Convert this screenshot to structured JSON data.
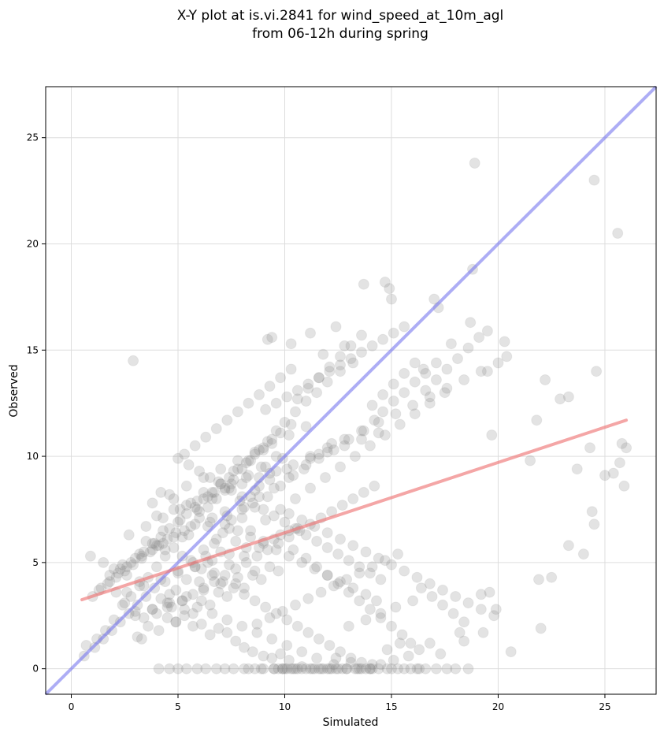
{
  "chart_data": {
    "type": "scatter",
    "title_lines": [
      "X-Y plot at is.vi.2841 for wind_speed_at_10m_agl",
      "from 06-12h during spring"
    ],
    "xlabel": "Simulated",
    "ylabel": "Observed",
    "xlim": [
      -1.2,
      27.4
    ],
    "ylim": [
      -1.2,
      27.4
    ],
    "xticks": [
      0,
      5,
      10,
      15,
      20,
      25
    ],
    "yticks": [
      0,
      5,
      10,
      15,
      20,
      25
    ],
    "grid": true,
    "colors": {
      "points": "#808080",
      "identity_line": "#7777ee",
      "fit_line": "#ee7777",
      "grid": "#dddddd",
      "axes": "#000000"
    },
    "identity_line": {
      "x": [
        -1.2,
        27.4
      ],
      "y": [
        -1.2,
        27.4
      ]
    },
    "fit_line": {
      "x": [
        0.5,
        26.0
      ],
      "y": [
        3.25,
        11.7
      ]
    },
    "points": {
      "x": [
        2.9,
        18.9,
        24.5,
        25.6,
        18.8,
        13.7,
        14.7,
        14.9,
        15.0,
        17.0,
        17.2,
        18.7,
        19.5,
        20.3,
        20.4,
        9.2,
        9.4,
        10.3,
        11.2,
        12.4,
        12.8,
        11.8,
        16.5,
        17.8,
        19.5,
        19.7,
        21.8,
        22.2,
        22.9,
        23.3,
        24.6,
        25.8,
        26.0,
        21.5,
        24.3,
        25.0,
        25.4,
        25.7,
        25.9,
        23.7,
        24.0,
        24.4,
        24.5,
        23.3,
        22.5,
        21.9,
        22.0,
        19.6,
        19.9,
        20.6,
        19.2,
        19.3,
        18.4,
        18.2,
        17.3,
        16.8,
        16.3,
        15.4,
        15.8,
        14.5,
        14.8,
        15.1,
        14.0,
        13.6,
        13.1,
        12.9,
        12.4,
        12.1,
        11.7,
        11.2,
        10.8,
        10.5,
        10.1,
        9.7,
        8.3,
        8.9,
        9.5,
        9.9,
        10.3,
        10.8,
        11.4,
        12.0,
        12.5,
        13.3,
        13.8,
        14.4,
        15.0,
        15.6,
        16.2,
        16.6,
        17.1,
        17.6,
        18.0,
        18.6,
        16.3,
        15.9,
        15.3,
        14.8,
        14.1,
        13.4,
        12.7,
        12.2,
        11.6,
        11.0,
        10.4,
        9.9,
        4.1,
        4.6,
        5.0,
        5.4,
        5.9,
        6.3,
        6.8,
        7.2,
        7.6,
        8.1,
        8.6,
        9.0,
        9.5,
        10.0,
        10.6,
        11.3,
        11.8,
        12.4,
        12.9,
        13.5,
        14.0,
        2.1,
        2.5,
        3.0,
        3.4,
        3.8,
        4.2,
        4.5,
        4.9,
        5.3,
        5.7,
        6.1,
        6.5,
        6.9,
        7.3,
        7.7,
        8.1,
        8.5,
        9.0,
        9.4,
        9.8,
        10.2,
        0.7,
        1.2,
        1.6,
        2.0,
        2.4,
        2.8,
        3.2,
        3.6,
        4.0,
        4.4,
        4.8,
        5.2,
        5.6,
        6.0,
        6.4,
        6.8,
        7.2,
        7.6,
        8.0,
        8.4,
        8.8,
        9.2,
        9.6,
        10.0,
        10.5,
        11.0,
        11.5,
        12.0,
        12.6,
        13.2,
        1.0,
        1.4,
        1.8,
        2.2,
        2.6,
        3.0,
        3.4,
        3.8,
        4.2,
        4.6,
        5.0,
        5.4,
        5.8,
        6.2,
        6.6,
        7.0,
        7.4,
        7.8,
        8.2,
        8.6,
        9.0,
        9.4,
        9.8,
        10.3,
        3.1,
        3.6,
        4.0,
        4.5,
        4.9,
        5.4,
        5.8,
        6.3,
        6.7,
        7.1,
        7.5,
        8.0,
        8.4,
        8.8,
        9.3,
        3.5,
        4.3,
        5.1,
        5.9,
        6.6,
        7.4,
        8.2,
        8.9,
        9.6,
        6.2,
        6.9,
        7.6,
        8.3,
        9.0,
        6.5,
        7.2,
        7.9,
        8.6,
        9.3,
        10.1,
        4.4,
        5.0,
        5.6,
        6.2,
        6.8,
        7.4,
        8.0,
        8.6,
        9.2,
        9.8,
        10.4,
        11.0,
        11.6,
        12.2,
        10.6,
        11.1,
        11.6,
        12.1,
        12.6,
        13.1,
        13.6,
        14.1,
        14.6,
        15.1,
        15.6,
        16.1,
        16.6,
        17.1,
        17.6,
        18.1,
        18.6,
        19.1,
        11.2,
        12.0,
        12.8,
        13.6,
        14.4,
        15.2,
        16.0,
        16.8,
        17.6,
        18.4,
        19.2,
        20.0,
        10.4,
        11.0,
        11.5,
        12.0,
        12.5,
        13.0,
        13.5,
        14.0,
        14.5,
        15.0,
        15.5,
        15.9,
        16.4,
        16.9,
        17.4,
        17.9,
        18.4,
        0.6,
        1.1,
        1.5,
        1.9,
        2.3,
        2.7,
        3.1,
        3.5,
        1.3,
        1.7,
        2.1,
        2.5,
        2.9,
        3.3,
        3.7,
        4.1,
        4.5,
        4.9,
        1.8,
        2.3,
        2.8,
        3.3,
        3.8,
        4.3,
        4.8,
        5.3,
        5.8,
        2.6,
        3.4,
        4.2,
        5.0,
        5.8,
        6.6,
        7.4,
        8.2,
        9.0,
        9.8,
        10.6,
        3.0,
        3.8,
        4.6,
        5.4,
        6.2,
        7.0,
        7.8,
        8.6,
        4.0,
        4.8,
        5.6,
        6.4,
        7.2,
        8.0,
        8.8,
        9.6,
        10.4,
        11.2,
        12.0,
        12.8,
        13.6,
        14.4,
        4.7,
        5.2,
        5.7,
        6.2,
        6.7,
        7.2,
        7.7,
        8.2,
        8.7,
        9.2,
        9.7,
        10.2,
        10.7,
        11.2,
        11.7,
        12.2,
        12.7,
        13.2,
        13.7,
        14.2,
        9.1,
        9.6,
        10.1,
        10.6,
        11.1,
        11.6,
        12.1,
        12.6,
        13.1,
        13.6,
        14.1,
        14.6,
        15.1,
        15.6,
        8.7,
        9.3,
        9.9,
        10.5,
        11.1,
        11.7,
        12.3,
        12.9,
        13.5,
        14.1,
        14.7,
        15.3,
        10.2,
        10.8,
        11.4,
        12.0,
        12.6,
        13.2,
        13.8,
        14.4,
        15.0,
        15.6,
        16.2,
        16.8,
        17.4,
        18.0,
        18.6,
        19.2,
        19.8,
        5.0,
        5.5,
        6.0,
        6.5,
        7.0,
        7.5,
        8.0,
        8.5,
        9.0,
        9.5,
        10.0,
        10.5,
        11.0,
        11.5,
        12.0,
        12.5,
        13.0,
        13.5,
        14.0,
        14.5,
        4.2,
        4.8,
        5.4,
        6.0,
        6.6,
        7.2,
        7.8,
        8.4,
        9.0,
        9.6,
        10.2,
        10.8,
        11.4,
        12.0,
        12.6,
        13.2,
        13.8,
        14.3,
        3.9,
        4.4,
        5.2,
        5.7,
        6.1,
        6.6,
        7.1,
        7.6,
        8.1,
        8.6,
        9.1,
        9.6,
        10.1,
        10.6,
        11.1,
        11.6,
        12.1,
        12.6,
        13.1,
        13.6,
        14.1,
        2.4,
        3.2,
        4.0,
        5.5,
        6.4,
        7.3,
        8.1,
        8.8,
        9.5,
        10.2,
        10.9,
        11.6,
        12.3,
        13.0,
        13.7,
        14.2,
        14.6,
        15.1,
        15.6,
        16.1,
        16.6,
        17.1,
        5.3,
        5.8,
        6.3,
        6.8,
        7.3,
        7.8,
        8.3,
        8.8,
        9.3,
        9.8,
        10.3,
        6.0,
        6.7,
        7.4,
        8.1,
        8.8,
        9.5,
        10.2,
        4.5,
        5.3,
        6.1,
        6.9,
        7.7,
        8.5,
        9.3,
        3.3,
        4.1,
        4.9,
        5.7,
        6.5,
        7.3,
        8.1,
        8.9,
        9.7,
        3.8,
        4.6,
        5.4,
        6.2,
        7.0,
        7.8,
        8.6,
        9.4,
        10.2,
        11.0,
        2.7,
        3.5,
        4.3,
        5.1,
        5.9,
        6.7,
        7.5,
        8.3,
        9.1,
        9.9,
        0.9,
        1.5,
        2.0,
        2.6,
        3.2,
        3.9,
        4.6,
        5.2,
        5.9,
        6.6,
        7.3,
        8.0,
        8.7,
        9.4,
        10.1,
        10.8,
        11.5,
        12.3,
        13.0,
        13.8,
        14.5,
        15.2,
        16.0,
        6.4,
        7.0,
        7.7,
        8.4,
        9.1,
        9.8,
        10.5,
        11.2,
        11.9,
        12.6,
        13.3,
        14.0,
        14.7,
        15.4,
        16.1,
        16.8,
        17.5
      ],
      "y": [
        14.5,
        23.8,
        23.0,
        20.5,
        18.8,
        18.1,
        18.2,
        17.9,
        17.4,
        17.4,
        17.0,
        16.3,
        15.9,
        15.4,
        14.7,
        15.5,
        15.6,
        15.3,
        15.8,
        16.1,
        15.2,
        14.8,
        14.1,
        15.3,
        14.0,
        11.0,
        11.7,
        13.6,
        12.7,
        12.8,
        14.0,
        10.6,
        10.4,
        9.8,
        10.4,
        9.1,
        9.2,
        9.7,
        8.6,
        9.4,
        5.4,
        7.4,
        6.8,
        5.8,
        4.3,
        4.2,
        1.9,
        3.6,
        2.8,
        0.8,
        3.5,
        1.7,
        1.3,
        1.7,
        0.7,
        1.2,
        0.9,
        1.2,
        0.6,
        0.2,
        0.9,
        0.4,
        0.0,
        0.0,
        0.3,
        0.0,
        0.5,
        0.0,
        0.0,
        0.0,
        0.1,
        0.0,
        0.0,
        0.0,
        0.0,
        0.0,
        0.0,
        0.0,
        0.0,
        0.0,
        0.0,
        0.0,
        0.0,
        0.0,
        0.0,
        0.0,
        0.0,
        0.0,
        0.0,
        0.0,
        0.0,
        0.0,
        0.0,
        0.0,
        0.0,
        0.0,
        0.0,
        0.0,
        0.0,
        0.0,
        0.0,
        0.0,
        0.0,
        0.0,
        0.0,
        0.0,
        0.0,
        0.0,
        0.0,
        0.0,
        0.0,
        0.0,
        0.0,
        0.0,
        0.0,
        0.0,
        0.0,
        0.0,
        0.0,
        0.0,
        0.0,
        0.0,
        0.0,
        0.0,
        0.0,
        0.0,
        0.0,
        3.6,
        3.1,
        2.7,
        2.4,
        2.8,
        3.3,
        2.9,
        2.2,
        2.5,
        2.0,
        2.1,
        1.6,
        1.9,
        1.7,
        1.3,
        1.0,
        0.8,
        0.6,
        0.5,
        0.7,
        0.4,
        1.1,
        1.4,
        1.8,
        2.3,
        3.0,
        3.4,
        3.9,
        4.3,
        4.8,
        5.3,
        5.7,
        6.2,
        6.7,
        7.1,
        7.6,
        8.0,
        8.5,
        8.9,
        9.4,
        9.8,
        10.3,
        10.7,
        11.2,
        11.6,
        12.1,
        12.6,
        13.0,
        13.5,
        14.0,
        14.4,
        3.4,
        3.8,
        4.1,
        4.5,
        4.8,
        5.2,
        5.5,
        5.9,
        6.2,
        6.6,
        6.9,
        7.3,
        7.6,
        8.0,
        8.3,
        8.7,
        9.0,
        9.4,
        9.7,
        10.1,
        10.4,
        10.8,
        11.1,
        11.5,
        1.5,
        2.0,
        2.6,
        3.1,
        3.7,
        4.2,
        4.8,
        5.3,
        5.9,
        6.4,
        7.0,
        7.5,
        8.1,
        8.6,
        9.2,
        6.0,
        6.5,
        7.0,
        7.5,
        8.0,
        8.5,
        9.0,
        9.5,
        10.0,
        8.3,
        8.8,
        9.3,
        9.8,
        10.3,
        6.9,
        7.4,
        7.9,
        8.4,
        8.9,
        9.4,
        4.1,
        4.6,
        5.1,
        5.6,
        6.1,
        6.6,
        7.1,
        7.6,
        8.1,
        8.6,
        9.1,
        9.6,
        10.1,
        10.6,
        12.7,
        13.2,
        13.7,
        14.2,
        14.7,
        15.2,
        15.7,
        12.4,
        12.9,
        13.4,
        13.9,
        14.4,
        13.1,
        13.6,
        14.1,
        14.6,
        15.1,
        15.6,
        10.0,
        10.4,
        10.8,
        11.2,
        11.6,
        12.0,
        12.4,
        12.8,
        13.2,
        13.6,
        14.0,
        14.4,
        5.6,
        5.2,
        4.8,
        4.4,
        4.0,
        3.6,
        3.2,
        2.8,
        2.4,
        2.0,
        1.6,
        1.2,
        3.8,
        3.4,
        3.0,
        2.6,
        2.2,
        0.6,
        1.0,
        1.4,
        1.8,
        2.2,
        2.6,
        3.0,
        3.4,
        3.7,
        4.0,
        4.3,
        4.6,
        4.9,
        5.2,
        5.5,
        5.8,
        6.1,
        6.4,
        4.4,
        4.7,
        5.0,
        5.3,
        5.6,
        5.9,
        6.2,
        6.5,
        6.8,
        3.6,
        3.9,
        4.2,
        4.5,
        4.8,
        5.1,
        5.4,
        5.7,
        6.0,
        6.3,
        6.6,
        2.5,
        2.8,
        3.1,
        3.4,
        3.7,
        4.0,
        4.3,
        4.6,
        7.2,
        7.5,
        7.8,
        8.1,
        8.4,
        8.7,
        9.0,
        9.3,
        9.6,
        9.9,
        10.2,
        10.5,
        10.8,
        11.1,
        2.9,
        3.2,
        3.5,
        3.8,
        4.1,
        4.4,
        4.7,
        5.0,
        5.3,
        5.6,
        5.9,
        6.2,
        6.5,
        6.8,
        7.1,
        7.4,
        7.7,
        8.0,
        8.3,
        8.6,
        12.2,
        12.5,
        12.8,
        13.1,
        13.4,
        13.7,
        14.0,
        14.3,
        14.6,
        14.9,
        15.2,
        15.5,
        15.8,
        16.1,
        2.1,
        2.4,
        2.7,
        3.0,
        3.3,
        3.6,
        3.9,
        4.2,
        4.5,
        4.8,
        5.1,
        5.4,
        7.3,
        7.0,
        6.7,
        6.4,
        6.1,
        5.8,
        5.5,
        5.2,
        4.9,
        4.6,
        4.3,
        4.0,
        3.7,
        3.4,
        3.1,
        2.8,
        2.5,
        9.9,
        9.6,
        9.3,
        9.0,
        8.7,
        8.4,
        8.1,
        7.8,
        7.5,
        7.2,
        6.9,
        6.6,
        6.3,
        6.0,
        5.7,
        5.4,
        5.1,
        4.8,
        4.5,
        4.2,
        8.3,
        8.0,
        7.7,
        7.4,
        7.1,
        6.8,
        6.5,
        6.2,
        5.9,
        5.6,
        5.3,
        5.0,
        4.7,
        4.4,
        4.1,
        3.8,
        3.5,
        3.2,
        5.9,
        5.6,
        5.3,
        5.0,
        4.7,
        4.4,
        4.1,
        3.8,
        3.5,
        3.2,
        2.9,
        2.6,
        2.3,
        2.0,
        1.7,
        1.4,
        1.1,
        0.8,
        0.5,
        0.3,
        0.2,
        4.9,
        5.4,
        5.8,
        6.3,
        6.7,
        7.2,
        7.6,
        8.1,
        8.5,
        9.0,
        9.4,
        9.9,
        10.3,
        10.8,
        11.2,
        11.7,
        12.1,
        12.6,
        13.0,
        13.5,
        13.9,
        14.4,
        10.1,
        10.5,
        10.9,
        11.3,
        11.7,
        12.1,
        12.5,
        12.9,
        13.3,
        13.7,
        14.1,
        4.1,
        4.5,
        4.9,
        5.3,
        5.7,
        6.1,
        6.5,
        2.4,
        2.8,
        3.2,
        3.6,
        4.0,
        4.4,
        4.8,
        1.4,
        1.8,
        2.2,
        2.6,
        3.0,
        3.4,
        3.8,
        4.2,
        4.6,
        7.8,
        8.2,
        8.6,
        9.0,
        9.4,
        9.8,
        10.2,
        10.6,
        11.0,
        11.4,
        6.3,
        6.7,
        7.1,
        7.5,
        7.9,
        8.3,
        8.7,
        9.1,
        9.5,
        9.9,
        5.3,
        5.0,
        4.7,
        4.4,
        4.1,
        3.8,
        3.5,
        3.2,
        2.9,
        2.6,
        2.3,
        2.0,
        1.7,
        1.4,
        1.1,
        0.8,
        0.5,
        0.2,
        2.0,
        2.3,
        2.6,
        2.9,
        3.2,
        5.0,
        5.5,
        6.0,
        6.5,
        7.0,
        7.5,
        8.0,
        8.5,
        9.0,
        9.5,
        10.0,
        10.5,
        11.0,
        11.5,
        12.0,
        12.5,
        13.0
      ]
    }
  }
}
